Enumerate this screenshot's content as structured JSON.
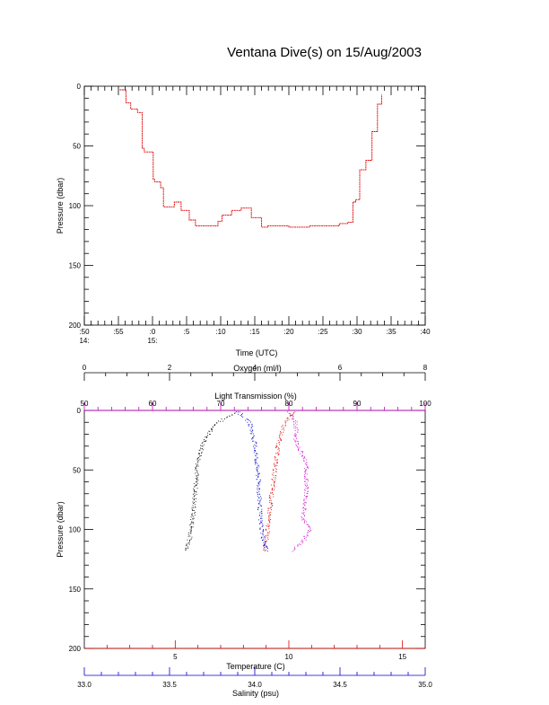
{
  "title": "Ventana Dive(s) on 15/Aug/2003",
  "chart_data": [
    {
      "type": "line",
      "xlabel": "Time (UTC)",
      "ylabel": "Pressure (dbar)",
      "x_ticks": [
        ":50",
        ":55",
        ":0",
        ":5",
        ":10",
        ":15",
        ":20",
        ":25",
        ":30",
        ":35",
        ":40"
      ],
      "hour_labels": [
        {
          "label": "14:",
          "tick": ":50"
        },
        {
          "label": "15:",
          "tick": ":0"
        }
      ],
      "xlim_minutes_after_1450": [
        0,
        50
      ],
      "yticks": [
        0,
        50,
        100,
        150,
        200
      ],
      "ylim": [
        200,
        0
      ],
      "color": "#dd0000",
      "series": [
        {
          "x_minutes_after_1450": [
            5.2,
            6.1,
            6.1,
            6.8,
            7.8,
            8.5,
            8.8,
            10.1,
            10.3,
            11.2,
            11.6,
            12.2,
            13.1,
            13.2,
            14.1,
            14.2,
            15.0,
            15.4,
            16.3,
            18.6,
            19.6,
            20.2,
            20.8,
            21.6,
            22.4,
            23.0,
            24.5,
            25.0,
            26.0,
            26.8,
            26.9,
            30.0,
            31.0,
            33.0,
            36.8,
            37.4,
            37.9,
            38.6,
            39.4,
            39.8,
            40.4,
            41.3,
            42.2,
            43.0,
            43.6
          ],
          "pressure": [
            3,
            3,
            14,
            19,
            22,
            52,
            55,
            78,
            80,
            85,
            101,
            101,
            101,
            97,
            97,
            104,
            104,
            112,
            117,
            117,
            113,
            108,
            108,
            104,
            104,
            102,
            110,
            110,
            118,
            118,
            117,
            118,
            118,
            117,
            117,
            115,
            115,
            114,
            97,
            95,
            70,
            62,
            38,
            15,
            7
          ]
        }
      ]
    },
    {
      "type": "scatter",
      "ylabel": "Pressure (dbar)",
      "yticks": [
        0,
        50,
        100,
        150,
        200
      ],
      "ylim": [
        200,
        0
      ],
      "axes": [
        {
          "label": "Oxygen (ml/l)",
          "position": "top",
          "color": "#000000",
          "range": [
            0,
            8
          ],
          "ticks": [
            "0",
            "2",
            "4",
            "6",
            "8"
          ]
        },
        {
          "label": "Light Transmission (%)",
          "position": "top",
          "color": "#cc00cc",
          "range": [
            50,
            100
          ],
          "ticks": [
            "50",
            "60",
            "70",
            "80",
            "90",
            "100"
          ]
        },
        {
          "label": "Temperature (C)",
          "position": "bottom",
          "color": "#dd0000",
          "range": [
            1,
            16
          ],
          "ticks": [
            "5",
            "10",
            "15"
          ]
        },
        {
          "label": "Salinity (psu)",
          "position": "bottom",
          "color": "#0000cc",
          "range": [
            33.0,
            35.0
          ],
          "ticks": [
            "33.0",
            "33.5",
            "34.0",
            "34.5",
            "35.0"
          ]
        }
      ],
      "profiles": [
        {
          "variable": "Oxygen (ml/l)",
          "color": "#000000",
          "pressure": [
            1,
            10,
            25,
            45,
            65,
            85,
            100,
            110,
            118
          ],
          "values": [
            3.6,
            3.1,
            2.8,
            2.65,
            2.6,
            2.55,
            2.5,
            2.45,
            2.4
          ]
        },
        {
          "variable": "Light Transmission (%)",
          "color": "#cc00cc",
          "pressure": [
            1,
            10,
            25,
            45,
            70,
            90,
            100,
            110,
            118
          ],
          "values": [
            80,
            81,
            81,
            82.5,
            82.5,
            82,
            83,
            82,
            80.5
          ]
        },
        {
          "variable": "Temperature (C)",
          "color": "#dd0000",
          "pressure": [
            1,
            8,
            15,
            30,
            60,
            90,
            110,
            118
          ],
          "values": [
            10.2,
            9.9,
            9.7,
            9.5,
            9.3,
            9.1,
            9.0,
            8.9
          ]
        },
        {
          "variable": "Salinity (psu)",
          "color": "#0000cc",
          "pressure": [
            1,
            10,
            30,
            60,
            90,
            110,
            118
          ],
          "values": [
            33.9,
            33.97,
            34.0,
            34.02,
            34.03,
            34.05,
            34.07
          ]
        }
      ]
    }
  ]
}
